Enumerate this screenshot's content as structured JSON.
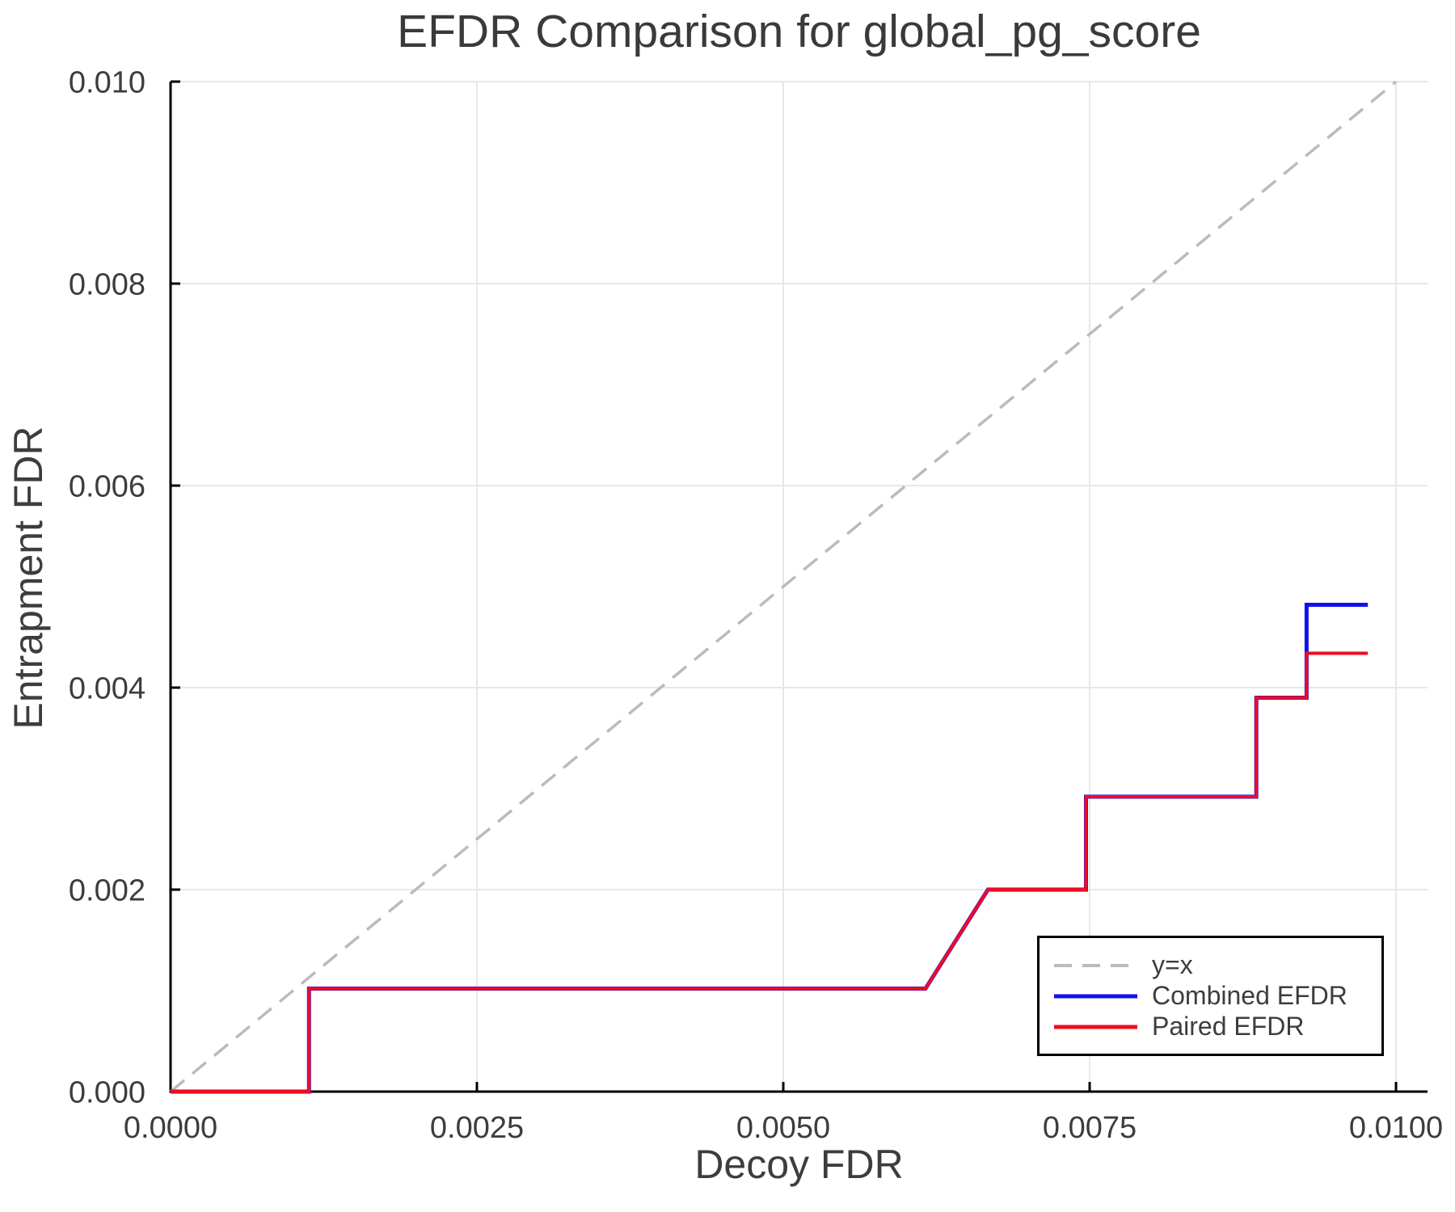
{
  "title": "EFDR Comparison for global_pg_score",
  "axes": {
    "xlabel": "Decoy FDR",
    "ylabel": "Entrapment FDR"
  },
  "legend": {
    "position": "lower right"
  },
  "colors": {
    "identity_line": "#bbbbbb",
    "combined_efdr": "#1310ee",
    "paired_efdr": "#ee0c22",
    "grid": "#e7e7e7",
    "spine": "#000000",
    "text": "#3d3d3d"
  },
  "chart_data": {
    "type": "line",
    "title": "EFDR Comparison for global_pg_score",
    "xlabel": "Decoy FDR",
    "ylabel": "Entrapment FDR",
    "xlim": [
      0,
      0.010257
    ],
    "ylim": [
      0,
      0.01
    ],
    "grid": true,
    "legend_position": "lower right",
    "xticks": {
      "values": [
        0.0,
        0.0025,
        0.005,
        0.0075,
        0.01
      ],
      "labels": [
        "0.0000",
        "0.0025",
        "0.0050",
        "0.0075",
        "0.0100"
      ]
    },
    "yticks": {
      "values": [
        0.0,
        0.002,
        0.004,
        0.006,
        0.008,
        0.01
      ],
      "labels": [
        "0.000",
        "0.002",
        "0.004",
        "0.006",
        "0.008",
        "0.010"
      ]
    },
    "series": [
      {
        "name": "y=x",
        "style": "dashed",
        "color": "#bbbbbb",
        "points": [
          [
            0,
            0
          ],
          [
            0.01,
            0.01
          ]
        ]
      },
      {
        "name": "Combined EFDR",
        "style": "solid",
        "color": "#1310ee",
        "points": [
          [
            0,
            0
          ],
          [
            0.00113,
            0
          ],
          [
            0.00113,
            0.00102
          ],
          [
            0.00616,
            0.00102
          ],
          [
            0.00667,
            0.002
          ],
          [
            0.00747,
            0.002
          ],
          [
            0.00747,
            0.00292
          ],
          [
            0.00886,
            0.00292
          ],
          [
            0.00886,
            0.0039
          ],
          [
            0.00927,
            0.0039
          ],
          [
            0.00927,
            0.00482
          ],
          [
            0.00977,
            0.00482
          ]
        ]
      },
      {
        "name": "Paired EFDR",
        "style": "solid",
        "color": "#ee0c22",
        "points": [
          [
            0,
            0
          ],
          [
            0.00113,
            0
          ],
          [
            0.00113,
            0.00102
          ],
          [
            0.00616,
            0.00102
          ],
          [
            0.00667,
            0.002
          ],
          [
            0.00747,
            0.002
          ],
          [
            0.00747,
            0.00292
          ],
          [
            0.00886,
            0.00292
          ],
          [
            0.00886,
            0.0039
          ],
          [
            0.00927,
            0.0039
          ],
          [
            0.00927,
            0.00434
          ],
          [
            0.00977,
            0.00434
          ]
        ]
      }
    ]
  }
}
